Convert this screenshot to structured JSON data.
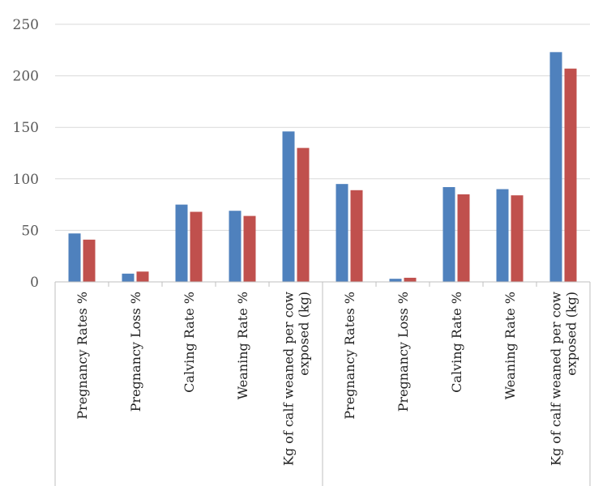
{
  "chart_data": {
    "type": "bar",
    "title": "",
    "xlabel": "",
    "ylabel": "",
    "ylim": [
      0,
      250
    ],
    "yticks": [
      0,
      50,
      100,
      150,
      200,
      250
    ],
    "grid": true,
    "legend": "none",
    "groups": [
      {
        "label": ""
      },
      {
        "label": ""
      }
    ],
    "categories": [
      "Pregnancy Rates %",
      "Pregnancy Loss %",
      "Calving Rate %",
      "Weaning Rate %",
      "Kg of calf weaned per cow exposed (kg)",
      "Pregnancy Rates %",
      "Pregnancy Loss %",
      "Calving Rate %",
      "Weaning Rate %",
      "Kg of calf weaned per cow exposed (kg)"
    ],
    "category_lines": [
      [
        "Pregnancy Rates %"
      ],
      [
        "Pregnancy Loss %"
      ],
      [
        "Calving Rate %"
      ],
      [
        "Weaning Rate %"
      ],
      [
        "Kg of calf weaned per cow",
        "exposed (kg)"
      ],
      [
        "Pregnancy Rates %"
      ],
      [
        "Pregnancy Loss %"
      ],
      [
        "Calving Rate %"
      ],
      [
        "Weaning Rate %"
      ],
      [
        "Kg of calf weaned per cow",
        "exposed (kg)"
      ]
    ],
    "series": [
      {
        "color": "#4f81bd",
        "values": [
          47,
          8,
          75,
          69,
          146,
          95,
          3,
          92,
          90,
          223
        ]
      },
      {
        "color": "#c0504d",
        "values": [
          41,
          10,
          68,
          64,
          130,
          89,
          4,
          85,
          84,
          207
        ]
      }
    ]
  }
}
